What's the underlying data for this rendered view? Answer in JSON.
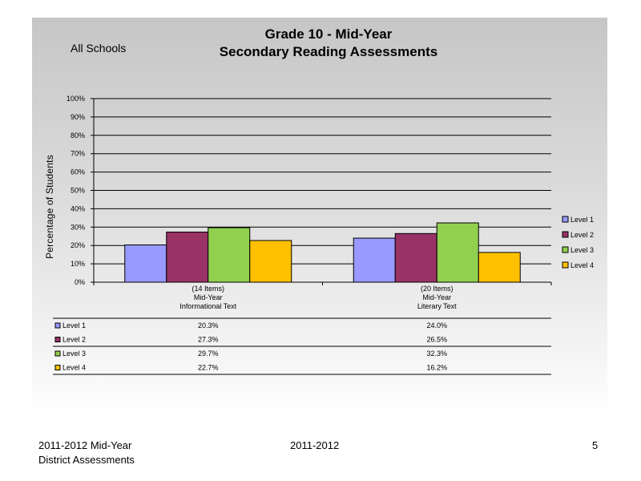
{
  "slide": {
    "scope": "All Schools",
    "title_line1": "Grade 10 - Mid-Year",
    "title_line2": "Secondary Reading Assessments"
  },
  "footer": {
    "left_line1": "2011-2012  Mid-Year",
    "left_line2": "District Assessments",
    "center": "2011-2012",
    "page_number": "5"
  },
  "colors": {
    "level1": "#9999FF",
    "level2": "#993366",
    "level3": "#92D050",
    "level4": "#FFC000"
  },
  "chart_data": {
    "type": "bar",
    "title": "",
    "ylabel": "Percentage of Students",
    "xlabel": "",
    "ylim": [
      0,
      100
    ],
    "y_ticks": [
      "0%",
      "10%",
      "20%",
      "30%",
      "40%",
      "50%",
      "60%",
      "70%",
      "80%",
      "90%",
      "100%"
    ],
    "grid": true,
    "legend_position": "right",
    "categories": [
      [
        "(14 Items)",
        "Mid-Year",
        "Informational Text"
      ],
      [
        "(20 Items)",
        "Mid-Year",
        "Literary Text"
      ]
    ],
    "series": [
      {
        "name": "Level 1",
        "values": [
          20.3,
          24.0
        ],
        "labels": [
          "20.3%",
          "24.0%"
        ]
      },
      {
        "name": "Level 2",
        "values": [
          27.3,
          26.5
        ],
        "labels": [
          "27.3%",
          "26.5%"
        ]
      },
      {
        "name": "Level 3",
        "values": [
          29.7,
          32.3
        ],
        "labels": [
          "29.7%",
          "32.3%"
        ]
      },
      {
        "name": "Level 4",
        "values": [
          22.7,
          16.2
        ],
        "labels": [
          "22.7%",
          "16.2%"
        ]
      }
    ]
  }
}
